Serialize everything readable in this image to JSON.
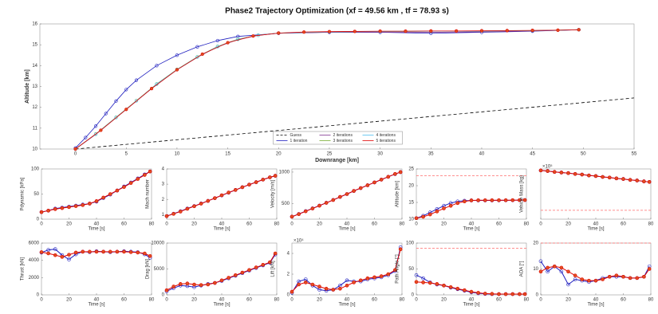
{
  "chart_data": [
    {
      "type": "line",
      "title": "Phase2 Trajectory Optimization  (xf = 49.56 km ,  tf = 78.93 s)",
      "xlabel": "Downrange  [km]",
      "ylabel": "Altitude  [km]",
      "xlim": [
        -3.5,
        55
      ],
      "xticks": [
        0,
        5,
        10,
        15,
        20,
        25,
        30,
        35,
        40,
        45,
        50,
        55
      ],
      "ylim": [
        10,
        16
      ],
      "yticks": [
        10,
        11,
        12,
        13,
        14,
        15,
        16
      ],
      "legend": "lower center",
      "series": [
        {
          "name": "Guess",
          "color": "#000000",
          "dash": true,
          "marker": "none",
          "x": [
            0,
            55
          ],
          "values": [
            10,
            12.45
          ]
        },
        {
          "name": "1 iteration",
          "color": "#1f1fbf",
          "dash": false,
          "marker": "circle",
          "x": [
            0,
            1,
            2,
            3,
            4,
            5,
            6,
            8,
            10,
            12,
            14,
            16,
            20,
            25,
            30,
            35,
            40,
            45,
            49.56
          ],
          "values": [
            10.05,
            10.55,
            11.1,
            11.7,
            12.3,
            12.85,
            13.3,
            14.0,
            14.5,
            14.9,
            15.2,
            15.4,
            15.55,
            15.6,
            15.6,
            15.55,
            15.6,
            15.65,
            15.72
          ]
        },
        {
          "name": "2 iterations",
          "color": "#7e2f8e",
          "dash": false,
          "marker": "none",
          "x": [
            0,
            2,
            4,
            6,
            8,
            10,
            12,
            14,
            16,
            18,
            20,
            25,
            30,
            35,
            40,
            45,
            49.56
          ],
          "values": [
            10,
            10.7,
            11.5,
            12.3,
            13.1,
            13.8,
            14.4,
            14.9,
            15.25,
            15.45,
            15.55,
            15.6,
            15.6,
            15.6,
            15.62,
            15.66,
            15.72
          ]
        },
        {
          "name": "3 iterations",
          "color": "#77ac30",
          "dash": false,
          "marker": "circle",
          "x": [
            0,
            2,
            4,
            6,
            8,
            10,
            12,
            14,
            16,
            18,
            20,
            25,
            30,
            35,
            40,
            45,
            49.56
          ],
          "values": [
            10,
            10.72,
            11.52,
            12.32,
            13.12,
            13.82,
            14.42,
            14.92,
            15.27,
            15.46,
            15.56,
            15.62,
            15.64,
            15.65,
            15.66,
            15.68,
            15.72
          ]
        },
        {
          "name": "4 iterations",
          "color": "#4dbeee",
          "dash": false,
          "marker": "circle",
          "x": [
            0,
            2,
            4,
            6,
            8,
            10,
            12,
            14,
            16,
            18,
            20,
            25,
            30,
            35,
            40,
            45,
            49.56
          ],
          "values": [
            10,
            10.71,
            11.51,
            12.31,
            13.11,
            13.81,
            14.41,
            14.91,
            15.26,
            15.46,
            15.56,
            15.62,
            15.64,
            15.65,
            15.66,
            15.68,
            15.72
          ]
        },
        {
          "name": "5 iterations",
          "color": "#e00000",
          "dash": false,
          "marker": "circle",
          "x": [
            0,
            2.5,
            5,
            7.5,
            10,
            12.5,
            15,
            17.5,
            20,
            22.5,
            25,
            27.5,
            30,
            32.5,
            35,
            37.5,
            40,
            42.5,
            45,
            47.5,
            49.56
          ],
          "values": [
            10,
            10.9,
            11.9,
            12.9,
            13.8,
            14.55,
            15.1,
            15.42,
            15.56,
            15.61,
            15.63,
            15.64,
            15.65,
            15.65,
            15.66,
            15.66,
            15.67,
            15.68,
            15.69,
            15.7,
            15.72
          ]
        }
      ]
    },
    {
      "type": "line",
      "ylabel": "Pdynamic [kPa]",
      "xlabel": "Time  [s]",
      "xlim": [
        0,
        80
      ],
      "xticks": [
        0,
        20,
        40,
        60,
        80
      ],
      "ylim": [
        0,
        100
      ],
      "yticks": [
        0,
        50,
        100
      ],
      "x": [
        0,
        5,
        10,
        15,
        20,
        25,
        30,
        35,
        40,
        45,
        50,
        55,
        60,
        65,
        70,
        75,
        78.93
      ],
      "series": [
        {
          "color": "#1f1fbf",
          "values": [
            14,
            17,
            21,
            23,
            25,
            27,
            29,
            31,
            35,
            42,
            49,
            57,
            65,
            73,
            81,
            89,
            95
          ]
        },
        {
          "color": "#e00000",
          "values": [
            14,
            17,
            20,
            22,
            24,
            26,
            28,
            31,
            36,
            43,
            50,
            57,
            64,
            72,
            80,
            88,
            95
          ]
        }
      ]
    },
    {
      "type": "line",
      "ylabel": "Mach number",
      "xlabel": "Time  [s]",
      "xlim": [
        0,
        80
      ],
      "xticks": [
        0,
        20,
        40,
        60,
        80
      ],
      "ylim": [
        0.7,
        4
      ],
      "yticks": [
        1,
        2,
        3,
        4
      ],
      "x": [
        0,
        5,
        10,
        15,
        20,
        25,
        30,
        35,
        40,
        45,
        50,
        55,
        60,
        65,
        70,
        75,
        78.93
      ],
      "series": [
        {
          "color": "#1f1fbf",
          "values": [
            0.9,
            1.06,
            1.22,
            1.4,
            1.56,
            1.73,
            1.9,
            2.08,
            2.26,
            2.44,
            2.62,
            2.8,
            2.97,
            3.13,
            3.3,
            3.45,
            3.55
          ]
        },
        {
          "color": "#e00000",
          "values": [
            0.9,
            1.05,
            1.2,
            1.38,
            1.55,
            1.72,
            1.9,
            2.08,
            2.27,
            2.45,
            2.62,
            2.8,
            2.97,
            3.13,
            3.3,
            3.45,
            3.55
          ]
        }
      ]
    },
    {
      "type": "line",
      "ylabel": "Velocity [m/s]",
      "xlabel": "Time  [s]",
      "xlim": [
        0,
        80
      ],
      "xticks": [
        0,
        20,
        40,
        60,
        80
      ],
      "ylim": [
        250,
        1050
      ],
      "yticks": [
        500,
        1000
      ],
      "x": [
        0,
        5,
        10,
        15,
        20,
        25,
        30,
        35,
        40,
        45,
        50,
        55,
        60,
        65,
        70,
        75,
        78.93
      ],
      "series": [
        {
          "color": "#1f1fbf",
          "values": [
            290,
            332,
            378,
            422,
            466,
            511,
            556,
            604,
            650,
            699,
            745,
            790,
            835,
            880,
            925,
            968,
            1000
          ]
        },
        {
          "color": "#e00000",
          "values": [
            290,
            330,
            375,
            420,
            465,
            510,
            555,
            605,
            650,
            700,
            745,
            790,
            835,
            880,
            925,
            970,
            1000
          ]
        }
      ]
    },
    {
      "type": "line",
      "ylabel": "Altitude [km]",
      "xlabel": "Time  [s]",
      "xlim": [
        0,
        80
      ],
      "xticks": [
        0,
        20,
        40,
        60,
        80
      ],
      "ylim": [
        10,
        25
      ],
      "yticks": [
        10,
        15,
        20,
        25
      ],
      "hlines": [
        23
      ],
      "x": [
        0,
        5,
        10,
        15,
        20,
        25,
        30,
        35,
        40,
        45,
        50,
        55,
        60,
        65,
        70,
        75,
        78.93
      ],
      "series": [
        {
          "color": "#1f1fbf",
          "values": [
            10.3,
            11,
            12,
            13,
            14,
            14.8,
            15.3,
            15.5,
            15.6,
            15.6,
            15.6,
            15.6,
            15.62,
            15.63,
            15.65,
            15.68,
            15.7
          ]
        },
        {
          "color": "#e00000",
          "values": [
            10.3,
            10.7,
            11.4,
            12.3,
            13.2,
            14.0,
            14.8,
            15.3,
            15.6,
            15.65,
            15.65,
            15.65,
            15.66,
            15.66,
            15.67,
            15.68,
            15.7
          ]
        }
      ]
    },
    {
      "type": "line",
      "ylabel": "Vehicle Mass [kg]",
      "xlabel": "Time  [s]",
      "y_exponent": "×10⁵",
      "xlim": [
        0,
        80
      ],
      "xticks": [
        0,
        20,
        40,
        60,
        80
      ],
      "ylim": [
        1,
        2.7
      ],
      "hlines": [
        1.3
      ],
      "x": [
        0,
        5,
        10,
        15,
        20,
        25,
        30,
        35,
        40,
        45,
        50,
        55,
        60,
        65,
        70,
        75,
        78.93
      ],
      "series": [
        {
          "color": "#1f1fbf",
          "values": [
            2.65,
            2.63,
            2.6,
            2.58,
            2.56,
            2.53,
            2.51,
            2.48,
            2.46,
            2.43,
            2.41,
            2.38,
            2.36,
            2.33,
            2.31,
            2.28,
            2.26
          ]
        },
        {
          "color": "#e00000",
          "values": [
            2.65,
            2.63,
            2.6,
            2.58,
            2.56,
            2.53,
            2.51,
            2.48,
            2.46,
            2.43,
            2.41,
            2.38,
            2.36,
            2.33,
            2.31,
            2.28,
            2.26
          ]
        }
      ]
    },
    {
      "type": "line",
      "ylabel": "Thrust [kN]",
      "xlabel": "Time  [s]",
      "xlim": [
        0,
        80
      ],
      "xticks": [
        0,
        20,
        40,
        60,
        80
      ],
      "ylim": [
        0,
        6000
      ],
      "yticks": [
        0,
        2000,
        4000,
        6000
      ],
      "x": [
        0,
        5,
        10,
        15,
        20,
        25,
        30,
        35,
        40,
        45,
        50,
        55,
        60,
        65,
        70,
        75,
        78.93
      ],
      "series": [
        {
          "color": "#1f1fbf",
          "values": [
            4900,
            5200,
            5300,
            4600,
            4100,
            4700,
            5000,
            4950,
            5050,
            5000,
            4950,
            5000,
            5050,
            5000,
            4950,
            4700,
            4300
          ]
        },
        {
          "color": "#e00000",
          "values": [
            4950,
            4800,
            4600,
            4400,
            4650,
            4900,
            5000,
            5000,
            5000,
            5000,
            5000,
            5000,
            5000,
            4950,
            4900,
            4800,
            4500
          ]
        }
      ]
    },
    {
      "type": "line",
      "ylabel": "Drag [kN]",
      "xlabel": "Time  [s]",
      "xlim": [
        0,
        80
      ],
      "xticks": [
        0,
        20,
        40,
        60,
        80
      ],
      "ylim": [
        0,
        10000
      ],
      "yticks": [
        0,
        5000,
        10000
      ],
      "x": [
        0,
        5,
        10,
        15,
        20,
        25,
        30,
        35,
        40,
        45,
        50,
        55,
        60,
        65,
        70,
        75,
        78.93
      ],
      "series": [
        {
          "color": "#1f1fbf",
          "values": [
            700,
            1300,
            1800,
            1700,
            1500,
            1800,
            2100,
            2300,
            2700,
            3200,
            3700,
            4200,
            4700,
            5200,
            5700,
            6200,
            7800
          ]
        },
        {
          "color": "#e00000",
          "values": [
            900,
            1600,
            2100,
            2200,
            2000,
            1900,
            2000,
            2300,
            2800,
            3300,
            3800,
            4300,
            4800,
            5300,
            5800,
            6300,
            8000
          ]
        }
      ]
    },
    {
      "type": "line",
      "ylabel": "Lift [kN]",
      "xlabel": "Time  [s]",
      "y_exponent": "×10⁴",
      "xlim": [
        0,
        80
      ],
      "xticks": [
        0,
        20,
        40,
        60,
        80
      ],
      "ylim": [
        0,
        5
      ],
      "yticks": [
        0,
        2,
        4
      ],
      "x": [
        0,
        5,
        10,
        15,
        20,
        25,
        30,
        35,
        40,
        45,
        50,
        55,
        60,
        65,
        70,
        75,
        78.93
      ],
      "series": [
        {
          "color": "#1f1fbf",
          "values": [
            0.2,
            1.3,
            1.5,
            0.9,
            0.5,
            0.4,
            0.5,
            0.9,
            1.4,
            1.3,
            1.3,
            1.5,
            1.6,
            1.7,
            1.9,
            2.3,
            4.6
          ]
        },
        {
          "color": "#e00000",
          "values": [
            0.3,
            1.0,
            1.2,
            1.0,
            0.8,
            0.6,
            0.5,
            0.6,
            0.9,
            1.2,
            1.4,
            1.6,
            1.7,
            1.8,
            2.0,
            2.4,
            4.4
          ]
        }
      ]
    },
    {
      "type": "line",
      "ylabel": "Path Angle [°]",
      "xlabel": "Time  [s]",
      "xlim": [
        0,
        80
      ],
      "xticks": [
        0,
        20,
        40,
        60,
        80
      ],
      "ylim": [
        0,
        100
      ],
      "yticks": [
        0,
        50,
        100
      ],
      "hlines": [
        90
      ],
      "x": [
        0,
        5,
        10,
        15,
        20,
        25,
        30,
        35,
        40,
        45,
        50,
        55,
        60,
        65,
        70,
        75,
        78.93
      ],
      "series": [
        {
          "color": "#1f1fbf",
          "values": [
            38,
            32,
            24,
            20,
            18,
            14,
            11,
            8,
            5,
            3,
            2,
            1.5,
            1.5,
            1.5,
            1.5,
            1.5,
            1.5
          ]
        },
        {
          "color": "#e00000",
          "values": [
            25,
            24,
            23,
            21,
            18,
            15,
            12,
            9,
            6,
            4,
            2.5,
            2,
            1.5,
            1.5,
            1.5,
            1.5,
            1.5
          ]
        }
      ]
    },
    {
      "type": "line",
      "ylabel": "AOA [°]",
      "xlabel": "Time  [s]",
      "xlim": [
        0,
        80
      ],
      "xticks": [
        0,
        20,
        40,
        60,
        80
      ],
      "ylim": [
        0,
        20
      ],
      "yticks": [
        0,
        10,
        20
      ],
      "hlines": [
        20
      ],
      "x": [
        0,
        5,
        10,
        15,
        20,
        25,
        30,
        35,
        40,
        45,
        50,
        55,
        60,
        65,
        70,
        75,
        78.93
      ],
      "series": [
        {
          "color": "#1f1fbf",
          "values": [
            13,
            9,
            11,
            9,
            4,
            6,
            5.5,
            5,
            5.5,
            6.5,
            7,
            7,
            7,
            6.5,
            6.5,
            7,
            11
          ]
        },
        {
          "color": "#e00000",
          "values": [
            9,
            10.5,
            11,
            10.5,
            9,
            7.5,
            6,
            5.5,
            5.5,
            6,
            7,
            7.5,
            7,
            6.5,
            6.5,
            7,
            10
          ]
        }
      ]
    }
  ]
}
